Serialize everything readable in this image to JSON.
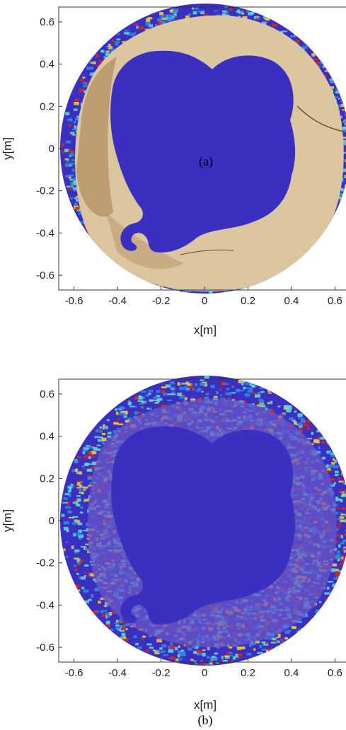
{
  "chart_data": [
    {
      "type": "heatmap",
      "panel_label": "(a)",
      "xlabel": "x[m]",
      "ylabel": "y[m]",
      "xlim": [
        -0.67,
        0.67
      ],
      "ylim": [
        -0.67,
        0.67
      ],
      "xticks": [
        "-0.6",
        "-0.4",
        "-0.2",
        "0",
        "0.2",
        "0.4",
        "0.6"
      ],
      "yticks": [
        "0.6",
        "0.4",
        "0.2",
        "0",
        "-0.2",
        "-0.4",
        "-0.6"
      ],
      "grid": false,
      "colors": {
        "background_blue": "#3a2fc0",
        "wood": "#dcc6a0",
        "wood_dark": "#a67c4e",
        "hot": "#d42a1a",
        "warm": "#f5c43a",
        "cool": "#5fd6d8",
        "mid": "#2f87e0"
      }
    },
    {
      "type": "heatmap",
      "panel_label": "(b)",
      "xlabel": "x[m]",
      "ylabel": "y[m]",
      "xlim": [
        -0.67,
        0.67
      ],
      "ylim": [
        -0.67,
        0.67
      ],
      "xticks": [
        "-0.6",
        "-0.4",
        "-0.2",
        "0",
        "0.2",
        "0.4",
        "0.6"
      ],
      "yticks": [
        "0.6",
        "0.4",
        "0.2",
        "0",
        "-0.2",
        "-0.4",
        "-0.6"
      ],
      "grid": false,
      "colors": {
        "background_blue": "#3a2fc0",
        "overlay": "#6a57c8",
        "hot": "#d42a1a",
        "warm": "#f5c43a",
        "cool": "#5fd6d8",
        "mid": "#2f87e0"
      }
    }
  ]
}
